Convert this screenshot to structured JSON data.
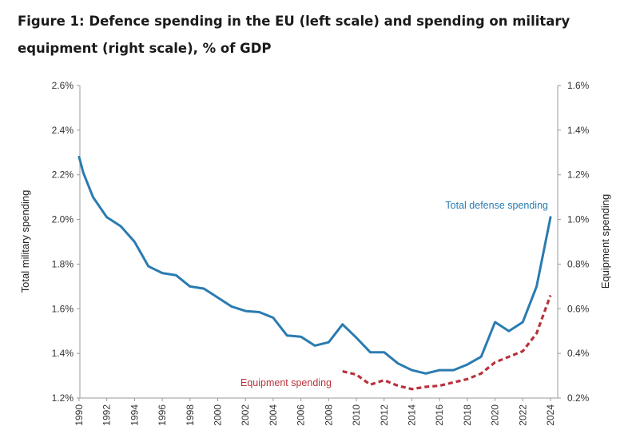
{
  "title": "Figure 1: Defence spending in the EU (left scale) and spending on military equipment (right scale), % of GDP",
  "chart_data": {
    "type": "line",
    "ylabel": "Total military spending",
    "y2label": "Equipment spending",
    "ylim": [
      1.2,
      2.6
    ],
    "y2lim": [
      0.2,
      1.6
    ],
    "xlim": [
      1990,
      2024
    ],
    "grid": false,
    "yticks": [
      "1.2%",
      "1.4%",
      "1.6%",
      "1.8%",
      "2.0%",
      "2.2%",
      "2.4%",
      "2.6%"
    ],
    "y2ticks": [
      "0.2%",
      "0.4%",
      "0.6%",
      "0.8%",
      "1.0%",
      "1.2%",
      "1.4%",
      "1.6%"
    ],
    "xticks": [
      "1990",
      "1992",
      "1994",
      "1996",
      "1998",
      "2000",
      "2002",
      "2004",
      "2006",
      "2008",
      "2010",
      "2012",
      "2014",
      "2016",
      "2018",
      "2020",
      "2022",
      "2024"
    ],
    "series": [
      {
        "name": "Total defense spending",
        "axis": "left",
        "color": "#2b7bb0",
        "style": "solid",
        "x": [
          1990,
          1990.3,
          1991,
          1992,
          1993,
          1994,
          1995,
          1996,
          1997,
          1998,
          1999,
          2000,
          2001,
          2002,
          2003,
          2004,
          2005,
          2006,
          2007,
          2008,
          2009,
          2010,
          2011,
          2012,
          2013,
          2014,
          2015,
          2016,
          2017,
          2018,
          2019,
          2020,
          2021,
          2022,
          2023,
          2024
        ],
        "y": [
          2.28,
          2.21,
          2.1,
          2.01,
          1.97,
          1.9,
          1.79,
          1.76,
          1.75,
          1.7,
          1.69,
          1.65,
          1.61,
          1.59,
          1.585,
          1.56,
          1.48,
          1.475,
          1.435,
          1.45,
          1.53,
          1.47,
          1.405,
          1.405,
          1.355,
          1.325,
          1.31,
          1.325,
          1.325,
          1.35,
          1.385,
          1.54,
          1.5,
          1.54,
          1.7,
          2.01
        ]
      },
      {
        "name": "Equipment spending",
        "axis": "right",
        "color": "#b8323c",
        "style": "dashed",
        "x": [
          2009,
          2010,
          2011,
          2012,
          2013,
          2014,
          2015,
          2016,
          2017,
          2018,
          2019,
          2020,
          2021,
          2022,
          2023,
          2024
        ],
        "y": [
          0.32,
          0.305,
          0.26,
          0.28,
          0.255,
          0.24,
          0.25,
          0.255,
          0.27,
          0.285,
          0.31,
          0.36,
          0.385,
          0.41,
          0.49,
          0.66
        ]
      }
    ]
  }
}
